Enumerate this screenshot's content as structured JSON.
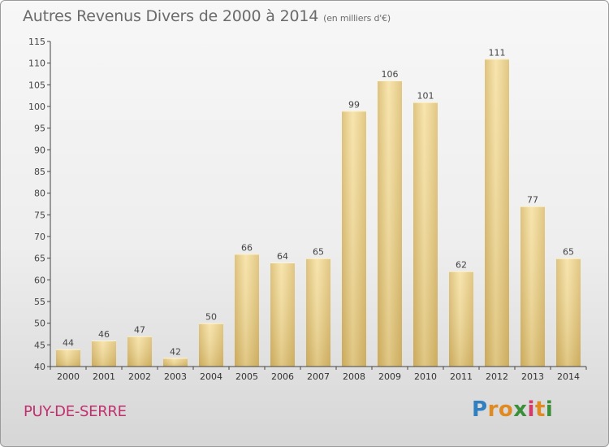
{
  "chart_data": {
    "type": "bar",
    "title": "Autres Revenus Divers de 2000 à 2014",
    "subtitle": "(en milliers d'€)",
    "categories": [
      "2000",
      "2001",
      "2002",
      "2003",
      "2004",
      "2005",
      "2006",
      "2007",
      "2008",
      "2009",
      "2010",
      "2011",
      "2012",
      "2013",
      "2014"
    ],
    "values": [
      44,
      46,
      47,
      42,
      50,
      66,
      64,
      65,
      99,
      106,
      101,
      62,
      111,
      77,
      65
    ],
    "ylim": [
      40,
      115
    ],
    "yticks": [
      40,
      45,
      50,
      55,
      60,
      65,
      70,
      75,
      80,
      85,
      90,
      95,
      100,
      105,
      110,
      115
    ],
    "grid": false,
    "bar_color": "#e6c97e"
  },
  "place_name": "PUY-DE-SERRE",
  "logo": {
    "text": "Proxiti",
    "letters": [
      {
        "ch": "P",
        "color": "#2f7fc1"
      },
      {
        "ch": "r",
        "color": "#e08a22"
      },
      {
        "ch": "o",
        "color": "#e08a22"
      },
      {
        "ch": "x",
        "color": "#3c8f3a"
      },
      {
        "ch": "i",
        "color": "#d23b6a"
      },
      {
        "ch": "t",
        "color": "#e08a22"
      },
      {
        "ch": "i",
        "color": "#3c8f3a"
      }
    ]
  }
}
